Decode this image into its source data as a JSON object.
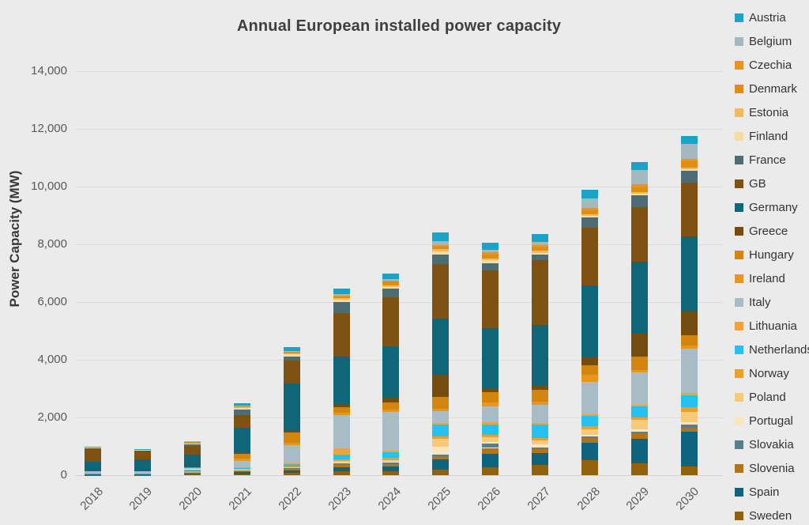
{
  "colors": {
    "background": "#ebebeb",
    "gridline": "#dcdcdc",
    "axis_line": "#d2d2d2",
    "tick_text": "#595959",
    "title_text": "#3f3f3f",
    "legend_text": "#333333"
  },
  "chart_data": {
    "type": "bar",
    "stacked": true,
    "title": "Annual European installed power capacity",
    "ylabel": "Power Capacity (MW)",
    "xlabel": "",
    "grid": true,
    "legend_position": "right",
    "stack_order": "first series rendered at top of stack, last series at bottom",
    "ylim": [
      0,
      14000
    ],
    "y_tick_values": [
      0,
      2000,
      4000,
      6000,
      8000,
      10000,
      12000,
      14000
    ],
    "y_tick_labels": [
      "0",
      "2,000",
      "4,000",
      "6,000",
      "8,000",
      "10,000",
      "12,000",
      "14,000"
    ],
    "categories": [
      "2018",
      "2019",
      "2020",
      "2021",
      "2022",
      "2023",
      "2024",
      "2025",
      "2026",
      "2027",
      "2028",
      "2029",
      "2030"
    ],
    "approx_year_totals_mw": [
      980,
      900,
      1185,
      2490,
      4450,
      6460,
      7000,
      8400,
      8050,
      8350,
      9900,
      10850,
      11750
    ],
    "values_note": "values in MW, estimated from stacked bar segment heights",
    "series": [
      {
        "name": "Austria",
        "color": "#1ba3c6",
        "values": [
          10,
          10,
          20,
          80,
          150,
          180,
          200,
          300,
          250,
          280,
          300,
          280,
          280
        ]
      },
      {
        "name": "Belgium",
        "color": "#a3b8bf",
        "values": [
          5,
          5,
          10,
          20,
          30,
          60,
          60,
          120,
          80,
          100,
          350,
          500,
          500
        ]
      },
      {
        "name": "Czechia",
        "color": "#e9941f",
        "values": [
          5,
          5,
          10,
          10,
          20,
          30,
          40,
          60,
          80,
          80,
          80,
          100,
          100
        ]
      },
      {
        "name": "Denmark",
        "color": "#de8d15",
        "values": [
          10,
          10,
          50,
          20,
          30,
          60,
          120,
          80,
          120,
          120,
          120,
          150,
          200
        ]
      },
      {
        "name": "Estonia",
        "color": "#f2b964",
        "values": [
          5,
          5,
          10,
          30,
          40,
          60,
          60,
          80,
          80,
          60,
          60,
          60,
          60
        ]
      },
      {
        "name": "Finland",
        "color": "#f5dca2",
        "values": [
          5,
          5,
          10,
          60,
          60,
          60,
          60,
          120,
          100,
          60,
          60,
          60,
          60
        ]
      },
      {
        "name": "France",
        "color": "#4d6d75",
        "values": [
          20,
          20,
          50,
          180,
          140,
          400,
          300,
          320,
          250,
          200,
          360,
          400,
          410
        ]
      },
      {
        "name": "GB",
        "color": "#7d5212",
        "values": [
          450,
          300,
          300,
          450,
          800,
          1500,
          1700,
          1900,
          2000,
          2250,
          2000,
          1900,
          1870
        ]
      },
      {
        "name": "Germany",
        "color": "#0f6678",
        "values": [
          330,
          400,
          450,
          870,
          1650,
          1650,
          1780,
          1950,
          2100,
          2100,
          2450,
          2500,
          2600
        ]
      },
      {
        "name": "Greece",
        "color": "#734c0e",
        "values": [
          5,
          5,
          10,
          30,
          60,
          100,
          150,
          750,
          100,
          150,
          300,
          800,
          810
        ]
      },
      {
        "name": "Hungary",
        "color": "#d3860d",
        "values": [
          5,
          5,
          10,
          160,
          360,
          200,
          250,
          410,
          360,
          400,
          350,
          450,
          365
        ]
      },
      {
        "name": "Ireland",
        "color": "#e8961e",
        "values": [
          5,
          5,
          10,
          80,
          60,
          80,
          100,
          100,
          150,
          100,
          250,
          100,
          100
        ]
      },
      {
        "name": "Italy",
        "color": "#a7bcc4",
        "values": [
          80,
          80,
          40,
          230,
          630,
          1150,
          1320,
          410,
          535,
          630,
          1100,
          1100,
          1540
        ]
      },
      {
        "name": "Lithuania",
        "color": "#f0a434",
        "values": [
          2,
          2,
          5,
          20,
          30,
          230,
          60,
          60,
          80,
          60,
          60,
          60,
          100
        ]
      },
      {
        "name": "Netherlands",
        "color": "#26c1f0",
        "values": [
          10,
          10,
          70,
          30,
          90,
          140,
          200,
          410,
          360,
          465,
          360,
          380,
          410
        ]
      },
      {
        "name": "Norway",
        "color": "#eba02d",
        "values": [
          5,
          5,
          50,
          30,
          30,
          60,
          80,
          60,
          100,
          80,
          100,
          80,
          150
        ]
      },
      {
        "name": "Poland",
        "color": "#f5ca7b",
        "values": [
          2,
          2,
          5,
          10,
          20,
          60,
          60,
          275,
          150,
          150,
          200,
          350,
          350
        ]
      },
      {
        "name": "Portugal",
        "color": "#f8e6c3",
        "values": [
          2,
          2,
          5,
          10,
          10,
          30,
          30,
          275,
          60,
          100,
          60,
          60,
          100
        ]
      },
      {
        "name": "Slovakia",
        "color": "#577f8a",
        "values": [
          2,
          2,
          5,
          10,
          20,
          30,
          40,
          60,
          150,
          60,
          60,
          60,
          100
        ]
      },
      {
        "name": "Slovenia",
        "color": "#b37417",
        "values": [
          2,
          2,
          5,
          60,
          60,
          100,
          100,
          120,
          200,
          150,
          150,
          200,
          150
        ]
      },
      {
        "name": "Spain",
        "color": "#0e637e",
        "values": [
          10,
          10,
          30,
          60,
          80,
          140,
          160,
          360,
          465,
          410,
          600,
          840,
          1190
        ]
      },
      {
        "name": "Sweden",
        "color": "#92610e",
        "values": [
          10,
          10,
          30,
          40,
          80,
          140,
          130,
          180,
          280,
          345,
          530,
          420,
          305
        ]
      }
    ]
  }
}
